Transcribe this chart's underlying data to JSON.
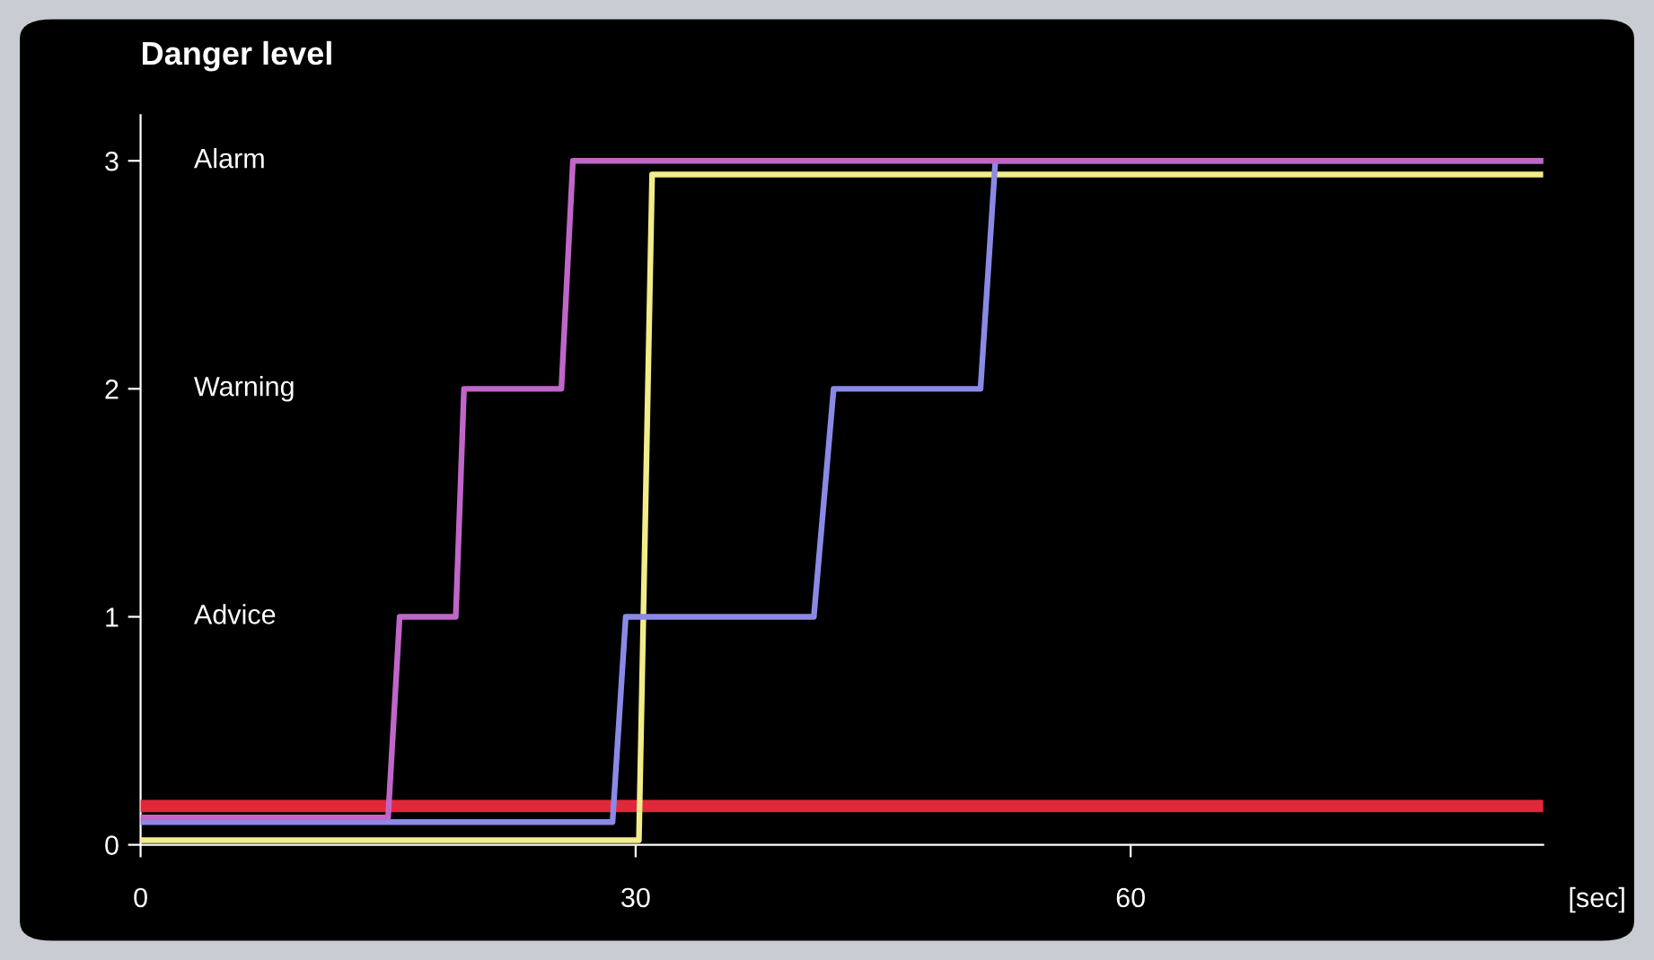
{
  "chart_data": {
    "type": "line",
    "title": "Danger level",
    "xlabel": "[sec]",
    "xlim": [
      0,
      85
    ],
    "ylim": [
      0,
      3.2
    ],
    "xticks": [
      0,
      30,
      60
    ],
    "yticks": [
      0,
      1,
      2,
      3
    ],
    "grid": false,
    "marker": "none",
    "line_style": "solid",
    "annotations": [
      "Alarm",
      "Warning",
      "Advice"
    ],
    "series": [
      {
        "color": "#e0283a",
        "x": [
          0,
          85
        ],
        "values": [
          0.17,
          0.17
        ]
      },
      {
        "color": "#f2ec8a",
        "x": [
          0,
          30.2,
          31.0,
          85
        ],
        "values": [
          0.02,
          0.02,
          2.94,
          2.94
        ]
      },
      {
        "color": "#8a8ae6",
        "x": [
          0,
          28.6,
          29.4,
          40.8,
          42.0,
          50.9,
          51.8,
          85
        ],
        "values": [
          0.1,
          0.1,
          1,
          1,
          2,
          2,
          3,
          3
        ]
      },
      {
        "color": "#c066c8",
        "x": [
          0,
          15.0,
          15.7,
          19.1,
          19.6,
          25.5,
          26.2,
          85
        ],
        "values": [
          0.12,
          0.12,
          1,
          1,
          2,
          2,
          3,
          3
        ]
      }
    ]
  }
}
